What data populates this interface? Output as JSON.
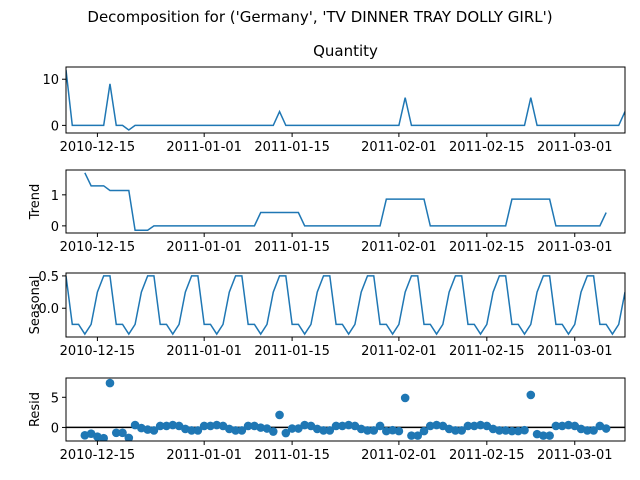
{
  "title": "Decomposition for ('Germany', 'TV DINNER TRAY DOLLY GIRL')",
  "chart_data": [
    {
      "type": "line",
      "title": "Quantity",
      "color": "#1f77b4",
      "x": [
        "2010-12-10",
        "2010-12-11",
        "2010-12-12",
        "2010-12-13",
        "2010-12-14",
        "2010-12-15",
        "2010-12-16",
        "2010-12-17",
        "2010-12-18",
        "2010-12-19",
        "2010-12-20",
        "2010-12-21",
        "2010-12-22",
        "2010-12-23",
        "2010-12-24",
        "2010-12-25",
        "2010-12-26",
        "2010-12-27",
        "2010-12-28",
        "2010-12-29",
        "2010-12-30",
        "2010-12-31",
        "2011-01-01",
        "2011-01-02",
        "2011-01-03",
        "2011-01-04",
        "2011-01-05",
        "2011-01-06",
        "2011-01-07",
        "2011-01-08",
        "2011-01-09",
        "2011-01-10",
        "2011-01-11",
        "2011-01-12",
        "2011-01-13",
        "2011-01-14",
        "2011-01-15",
        "2011-01-16",
        "2011-01-17",
        "2011-01-18",
        "2011-01-19",
        "2011-01-20",
        "2011-01-21",
        "2011-01-22",
        "2011-01-23",
        "2011-01-24",
        "2011-01-25",
        "2011-01-26",
        "2011-01-27",
        "2011-01-28",
        "2011-01-29",
        "2011-01-30",
        "2011-01-31",
        "2011-02-01",
        "2011-02-02",
        "2011-02-03",
        "2011-02-04",
        "2011-02-05",
        "2011-02-06",
        "2011-02-07",
        "2011-02-08",
        "2011-02-09",
        "2011-02-10",
        "2011-02-11",
        "2011-02-12",
        "2011-02-13",
        "2011-02-14",
        "2011-02-15",
        "2011-02-16",
        "2011-02-17",
        "2011-02-18",
        "2011-02-19",
        "2011-02-20",
        "2011-02-21",
        "2011-02-22",
        "2011-02-23",
        "2011-02-24",
        "2011-02-25",
        "2011-02-26",
        "2011-02-27",
        "2011-02-28",
        "2011-03-01",
        "2011-03-02",
        "2011-03-03",
        "2011-03-04",
        "2011-03-05",
        "2011-03-06",
        "2011-03-07",
        "2011-03-08",
        "2011-03-09"
      ],
      "xlim": [
        "2010-12-10",
        "2011-03-09"
      ],
      "xticks": [
        "2010-12-15",
        "2011-01-01",
        "2011-01-15",
        "2011-02-01",
        "2011-02-15",
        "2011-03-01"
      ],
      "values": [
        12,
        0,
        0,
        0,
        0,
        0,
        0,
        9,
        0,
        0,
        -1,
        0,
        0,
        0,
        0,
        0,
        0,
        0,
        0,
        0,
        0,
        0,
        0,
        0,
        0,
        0,
        0,
        0,
        0,
        0,
        0,
        0,
        0,
        0,
        3,
        0,
        0,
        0,
        0,
        0,
        0,
        0,
        0,
        0,
        0,
        0,
        0,
        0,
        0,
        0,
        0,
        0,
        0,
        0,
        6,
        0,
        0,
        0,
        0,
        0,
        0,
        0,
        0,
        0,
        0,
        0,
        0,
        0,
        0,
        0,
        0,
        0,
        0,
        0,
        6,
        0,
        0,
        0,
        0,
        0,
        0,
        0,
        0,
        0,
        0,
        0,
        0,
        0,
        0,
        3
      ],
      "ylim": [
        -1.65,
        12.65
      ],
      "yticks": [
        0,
        10
      ]
    },
    {
      "type": "line",
      "ylabel": "Trend",
      "color": "#1f77b4",
      "values": [
        null,
        null,
        null,
        1.71,
        1.29,
        1.29,
        1.29,
        1.14,
        1.14,
        1.14,
        1.14,
        -0.14,
        -0.14,
        -0.14,
        0,
        0,
        0,
        0,
        0,
        0,
        0,
        0,
        0,
        0,
        0,
        0,
        0,
        0,
        0,
        0,
        0,
        0.43,
        0.43,
        0.43,
        0.43,
        0.43,
        0.43,
        0.43,
        0,
        0,
        0,
        0,
        0,
        0,
        0,
        0,
        0,
        0,
        0,
        0,
        0,
        0.86,
        0.86,
        0.86,
        0.86,
        0.86,
        0.86,
        0.86,
        0,
        0,
        0,
        0,
        0,
        0,
        0,
        0,
        0,
        0,
        0,
        0,
        0,
        0.86,
        0.86,
        0.86,
        0.86,
        0.86,
        0.86,
        0.86,
        0,
        0,
        0,
        0,
        0,
        0,
        0,
        0,
        0.43,
        null,
        null,
        null
      ],
      "ylim": [
        -0.23,
        1.8
      ],
      "yticks": [
        0,
        1
      ]
    },
    {
      "type": "line",
      "ylabel": "Seasonal",
      "color": "#1f77b4",
      "values": [
        0.5,
        -0.25,
        -0.25,
        -0.4,
        -0.25,
        0.25,
        0.5,
        0.5,
        -0.25,
        -0.25,
        -0.4,
        -0.25,
        0.25,
        0.5,
        0.5,
        -0.25,
        -0.25,
        -0.4,
        -0.25,
        0.25,
        0.5,
        0.5,
        -0.25,
        -0.25,
        -0.4,
        -0.25,
        0.25,
        0.5,
        0.5,
        -0.25,
        -0.25,
        -0.4,
        -0.25,
        0.25,
        0.5,
        0.5,
        -0.25,
        -0.25,
        -0.4,
        -0.25,
        0.25,
        0.5,
        0.5,
        -0.25,
        -0.25,
        -0.4,
        -0.25,
        0.25,
        0.5,
        0.5,
        -0.25,
        -0.25,
        -0.4,
        -0.25,
        0.25,
        0.5,
        0.5,
        -0.25,
        -0.25,
        -0.4,
        -0.25,
        0.25,
        0.5,
        0.5,
        -0.25,
        -0.25,
        -0.4,
        -0.25,
        0.25,
        0.5,
        0.5,
        -0.25,
        -0.25,
        -0.4,
        -0.25,
        0.25,
        0.5,
        0.5,
        -0.25,
        -0.25,
        -0.4,
        -0.25,
        0.25,
        0.5,
        0.5,
        -0.25,
        -0.25,
        -0.4,
        -0.25,
        0.25
      ],
      "ylim": [
        -0.445,
        0.545
      ],
      "yticks": [
        {
          "value": 0,
          "label": "0.0"
        },
        0.5
      ]
    },
    {
      "type": "scatter",
      "ylabel": "Resid",
      "color": "#1f77b4",
      "zero_line": 0,
      "values": [
        null,
        null,
        null,
        -1.31,
        -1.04,
        -1.54,
        -1.79,
        7.36,
        -0.89,
        -0.89,
        -1.74,
        0.39,
        -0.11,
        -0.36,
        -0.5,
        0.25,
        0.25,
        0.4,
        0.25,
        -0.25,
        -0.5,
        -0.5,
        0.25,
        0.25,
        0.4,
        0.25,
        -0.25,
        -0.5,
        -0.5,
        0.25,
        0.25,
        -0.03,
        -0.18,
        -0.68,
        2.07,
        -0.93,
        -0.18,
        -0.18,
        0.4,
        0.25,
        -0.25,
        -0.5,
        -0.5,
        0.25,
        0.25,
        0.4,
        0.25,
        -0.25,
        -0.5,
        -0.5,
        0.25,
        -0.61,
        -0.46,
        -0.61,
        4.89,
        -1.36,
        -1.36,
        -0.61,
        0.25,
        0.4,
        0.25,
        -0.25,
        -0.5,
        -0.5,
        0.25,
        0.25,
        0.4,
        0.25,
        -0.25,
        -0.5,
        -0.5,
        -0.61,
        -0.61,
        -0.46,
        5.39,
        -1.11,
        -1.36,
        -1.36,
        0.25,
        0.25,
        0.4,
        0.25,
        -0.25,
        -0.5,
        -0.5,
        0.25,
        -0.18,
        null,
        null,
        null
      ],
      "ylim": [
        -2.25,
        8.2
      ],
      "yticks": [
        0,
        5
      ]
    }
  ]
}
